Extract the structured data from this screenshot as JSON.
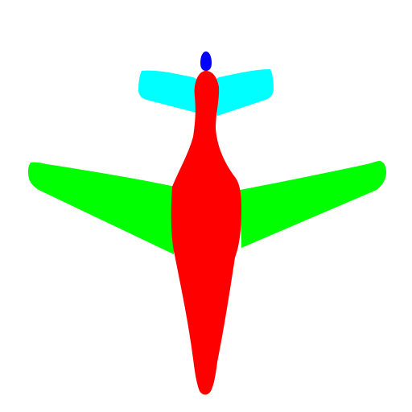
{
  "colors": {
    "background": "#ffffff",
    "fuselage": "#ff0000",
    "wings": "#00ff00",
    "tail": "#00ffff",
    "tip": "#0000ff"
  },
  "parts": [
    {
      "name": "tail",
      "color_key": "tail"
    },
    {
      "name": "wings",
      "color_key": "wings"
    },
    {
      "name": "fuselage",
      "color_key": "fuselage"
    },
    {
      "name": "tip",
      "color_key": "tip"
    }
  ]
}
